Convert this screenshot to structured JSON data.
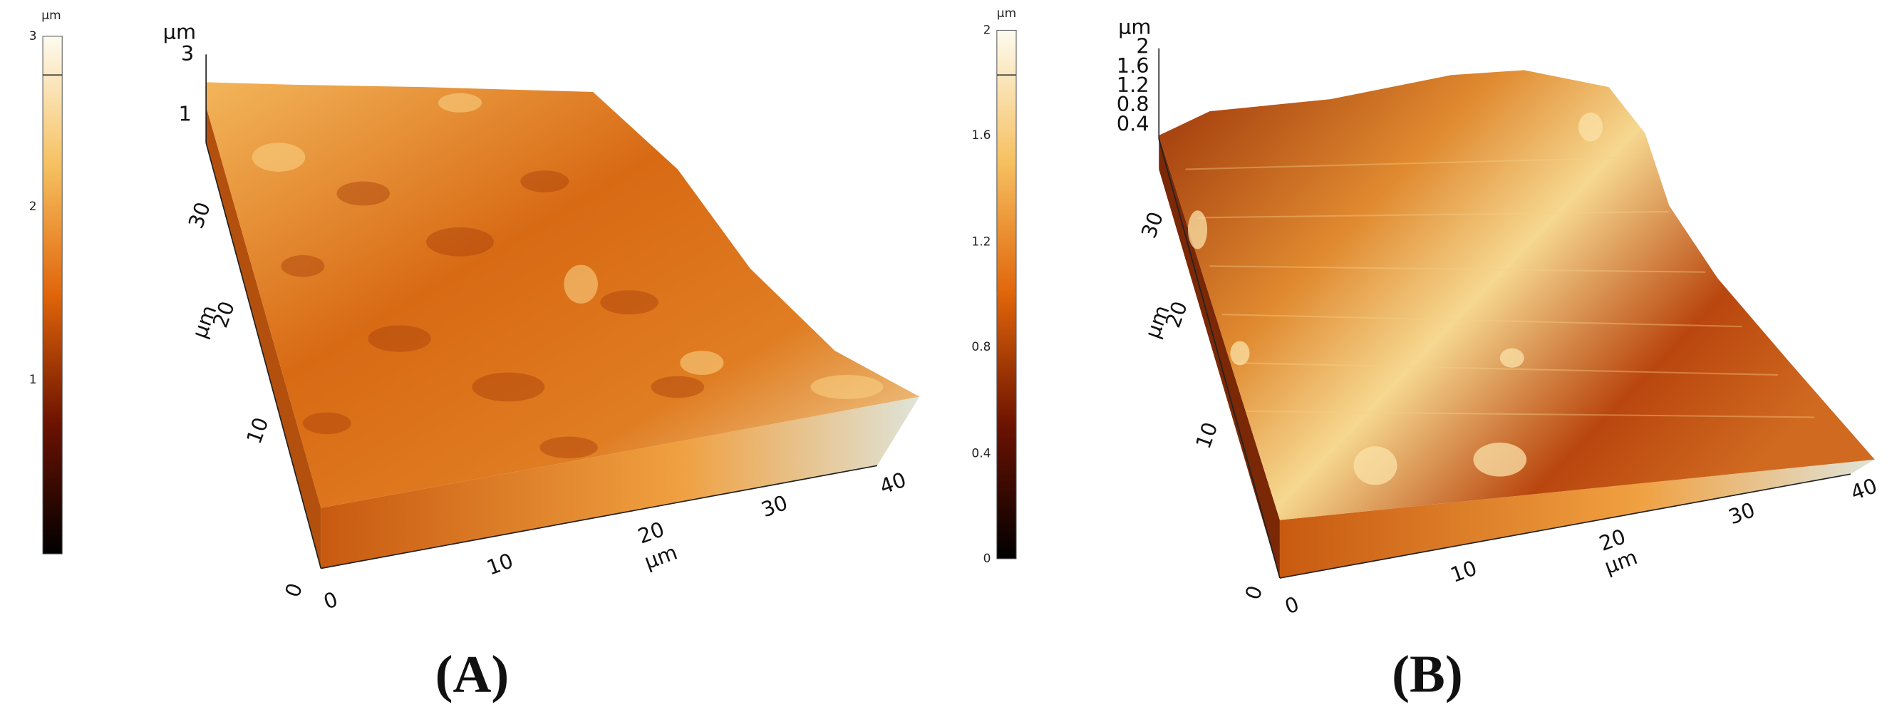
{
  "panels": [
    {
      "label": "(A)",
      "colorbar": {
        "unit": "µm",
        "ticks": [
          "3",
          "2",
          "1"
        ]
      },
      "z_axis": {
        "unit": "µm",
        "ticks": [
          "3",
          "1"
        ]
      },
      "y_axis": {
        "unit": "µm",
        "ticks": [
          "0",
          "10",
          "20",
          "30"
        ]
      },
      "x_axis": {
        "unit": "µm",
        "ticks": [
          "0",
          "10",
          "20",
          "30",
          "40"
        ]
      }
    },
    {
      "label": "(B)",
      "colorbar": {
        "unit": "µm",
        "ticks": [
          "2",
          "1.6",
          "1.2",
          "0.8",
          "0.4",
          "0"
        ]
      },
      "z_axis": {
        "unit": "µm",
        "ticks": [
          "2",
          "1.6",
          "1.2",
          "0.8",
          "0.4"
        ]
      },
      "y_axis": {
        "unit": "µm",
        "ticks": [
          "0",
          "10",
          "20",
          "30"
        ]
      },
      "x_axis": {
        "unit": "µm",
        "ticks": [
          "0",
          "10",
          "20",
          "30",
          "40"
        ]
      }
    }
  ]
}
